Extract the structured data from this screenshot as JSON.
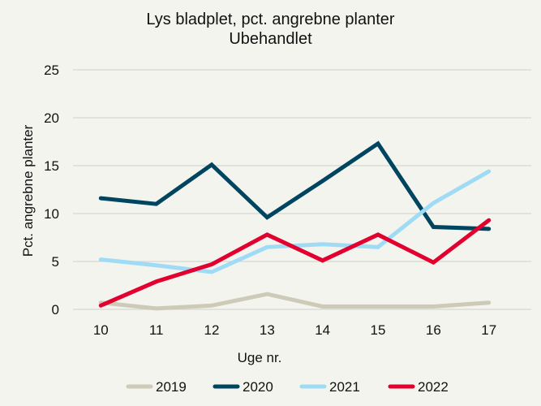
{
  "chart_data": {
    "type": "line",
    "title": "Lys bladplet, pct. angrebne planter",
    "subtitle": "Ubehandlet",
    "xlabel": "Uge nr.",
    "ylabel": "Pct. angrebne planter",
    "x": [
      10,
      11,
      12,
      13,
      14,
      15,
      16,
      17
    ],
    "ylim": [
      0,
      25
    ],
    "yticks": [
      0,
      5,
      10,
      15,
      20,
      25
    ],
    "grid": true,
    "legend": "bottom",
    "series": [
      {
        "name": "2019",
        "color": "#cdcab8",
        "values": [
          0.7,
          0.1,
          0.4,
          1.6,
          0.3,
          0.3,
          0.3,
          0.7
        ]
      },
      {
        "name": "2020",
        "color": "#00455f",
        "values": [
          11.6,
          11.0,
          15.1,
          9.6,
          13.4,
          17.3,
          8.6,
          8.4
        ]
      },
      {
        "name": "2021",
        "color": "#a0dbf6",
        "values": [
          5.2,
          4.6,
          3.9,
          6.5,
          6.8,
          6.5,
          11.1,
          14.4
        ]
      },
      {
        "name": "2022",
        "color": "#e2002f",
        "values": [
          0.4,
          2.9,
          4.7,
          7.8,
          5.1,
          7.8,
          4.9,
          9.3
        ]
      }
    ]
  }
}
